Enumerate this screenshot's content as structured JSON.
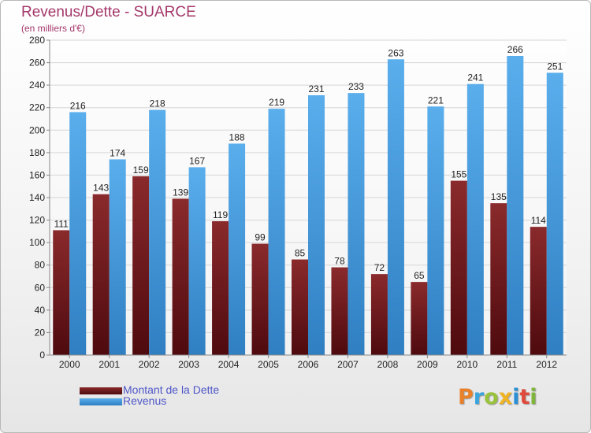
{
  "title": "Revenus/Dette - SUARCE",
  "subtitle": "(en milliers d'€)",
  "legend": {
    "debt_label": "Montant de la Dette",
    "revenue_label": "Revenus"
  },
  "logo": {
    "letters": [
      "P",
      "r",
      "o",
      "x",
      "i",
      "t",
      "i"
    ],
    "colors": [
      "#e8812a",
      "#3aa6e0",
      "#9ac33b",
      "#f0b323",
      "#2b8fd6",
      "#e04a3a",
      "#7fb53a"
    ]
  },
  "colors": {
    "debt": "#6e1a1e",
    "revenue": "#3d8fd6",
    "text": "#222222",
    "grid": "#d6d6d6"
  },
  "chart_data": {
    "type": "bar",
    "title": "Revenus/Dette - SUARCE",
    "ylabel": "(en milliers d'€)",
    "xlabel": "",
    "ylim": [
      0,
      280
    ],
    "ytick_step": 20,
    "grid": true,
    "categories": [
      "2000",
      "2001",
      "2002",
      "2003",
      "2004",
      "2005",
      "2006",
      "2007",
      "2008",
      "2009",
      "2010",
      "2011",
      "2012"
    ],
    "series": [
      {
        "name": "Montant de la Dette",
        "values": [
          111,
          143,
          159,
          139,
          119,
          99,
          85,
          78,
          72,
          65,
          155,
          135,
          114
        ]
      },
      {
        "name": "Revenus",
        "values": [
          216,
          174,
          218,
          167,
          188,
          219,
          231,
          233,
          263,
          221,
          241,
          266,
          251
        ]
      }
    ]
  }
}
